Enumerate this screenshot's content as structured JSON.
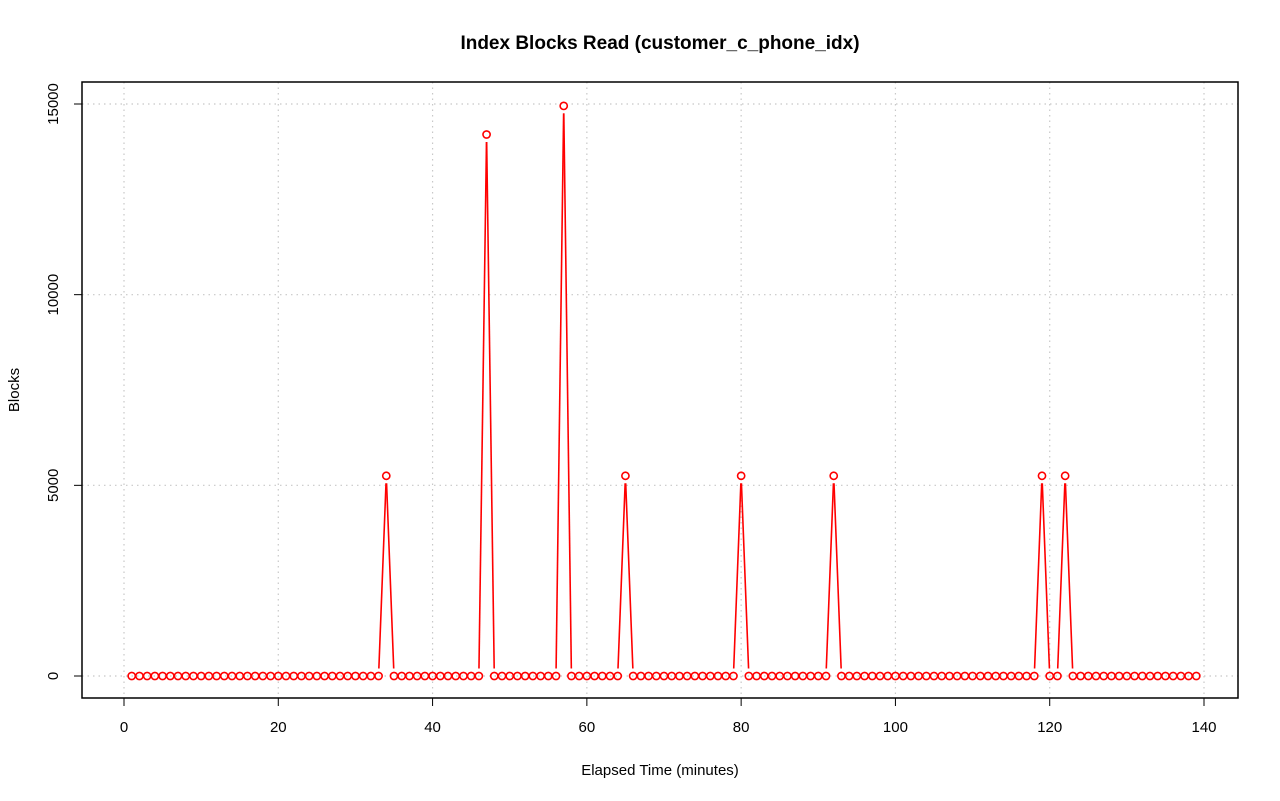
{
  "chart_data": {
    "type": "line",
    "title": "Index Blocks Read (customer_c_phone_idx)",
    "xlabel": "Elapsed Time (minutes)",
    "ylabel": "Blocks",
    "xlim": [
      0,
      140
    ],
    "ylim": [
      0,
      15000
    ],
    "xticks": [
      0,
      20,
      40,
      60,
      80,
      100,
      120,
      140
    ],
    "yticks": [
      0,
      5000,
      10000,
      15000
    ],
    "grid": true,
    "series": [
      {
        "color": "#ff0000",
        "marker": "open-circle",
        "x_start": 1,
        "x_end": 139,
        "baseline": 0,
        "spikes": [
          {
            "x": 34,
            "y": 5250
          },
          {
            "x": 47,
            "y": 14200
          },
          {
            "x": 57,
            "y": 14950
          },
          {
            "x": 65,
            "y": 5250
          },
          {
            "x": 80,
            "y": 5250
          },
          {
            "x": 92,
            "y": 5250
          },
          {
            "x": 119,
            "y": 5250
          },
          {
            "x": 122,
            "y": 5250
          }
        ]
      }
    ]
  }
}
